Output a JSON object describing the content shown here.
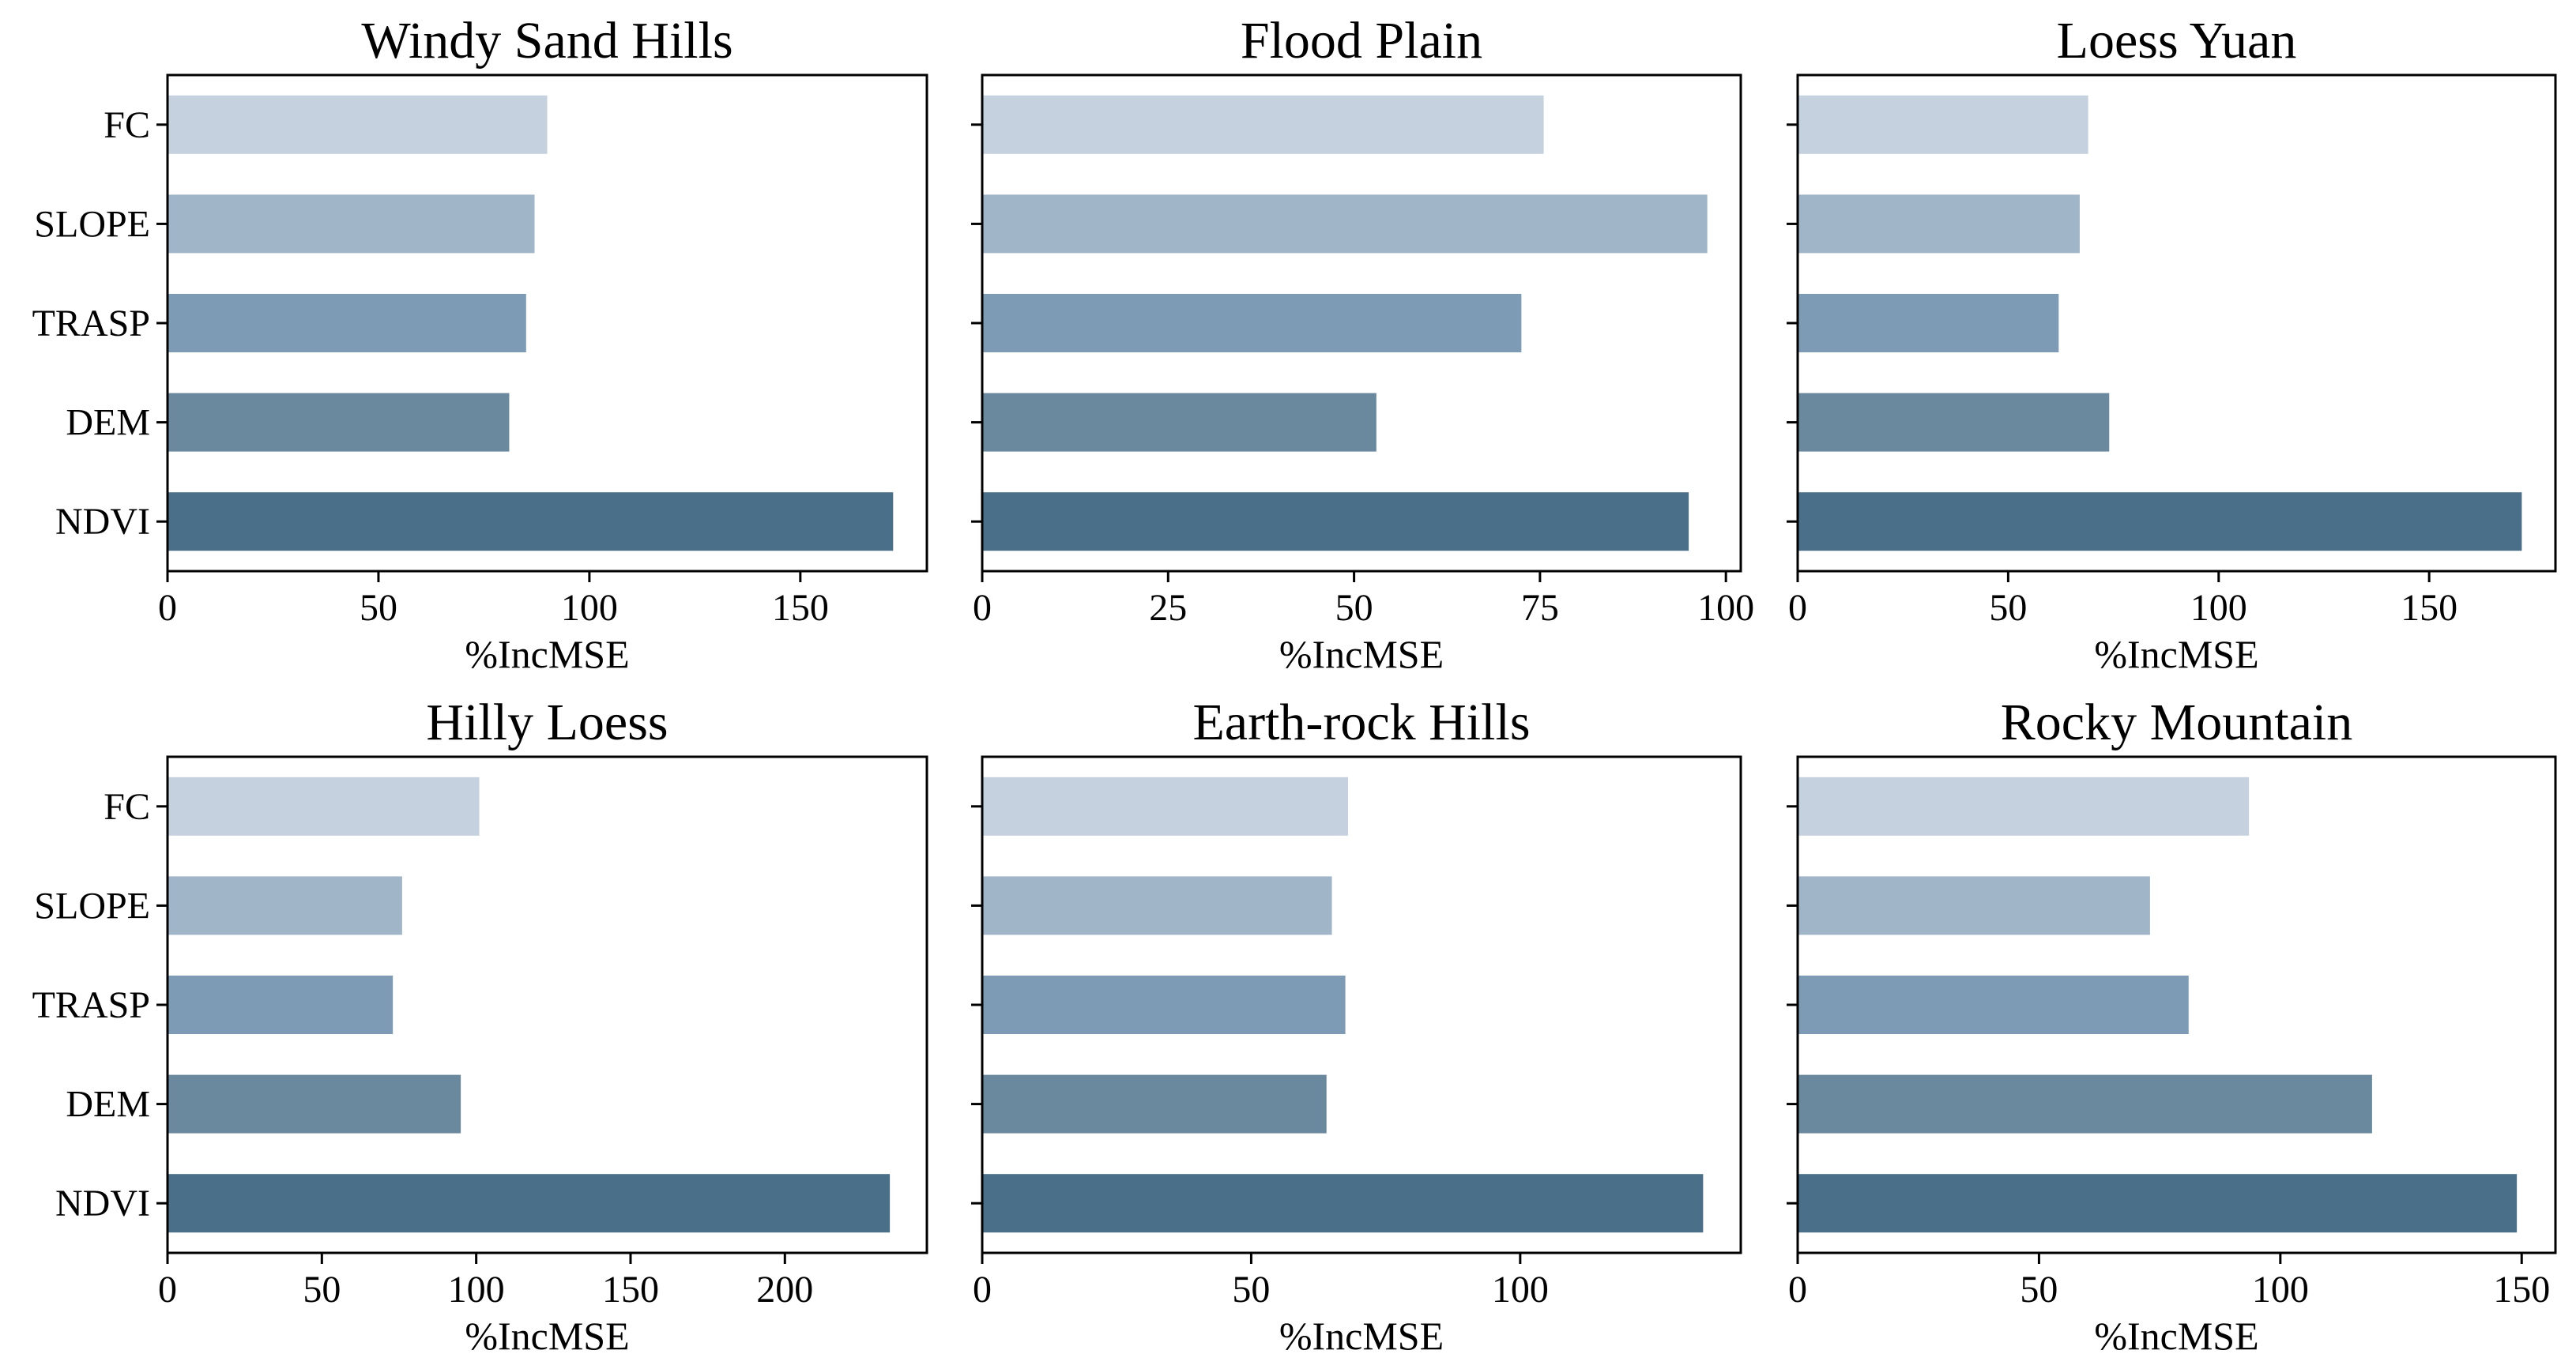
{
  "chart_data": [
    {
      "type": "bar",
      "orientation": "horizontal",
      "title": "Windy Sand Hills",
      "xlabel": "%IncMSE",
      "ylabel": "",
      "categories": [
        "FC",
        "SLOPE",
        "TRASP",
        "DEM",
        "NDVI"
      ],
      "values": [
        90,
        87,
        85,
        81,
        172
      ],
      "xlim": [
        0,
        180
      ],
      "xticks": [
        0,
        50,
        100,
        150
      ],
      "show_category_labels": true
    },
    {
      "type": "bar",
      "orientation": "horizontal",
      "title": "Flood Plain",
      "xlabel": "%IncMSE",
      "ylabel": "",
      "categories": [
        "FC",
        "SLOPE",
        "TRASP",
        "DEM",
        "NDVI"
      ],
      "values": [
        75.5,
        97.5,
        72.5,
        53,
        95
      ],
      "xlim": [
        0,
        102
      ],
      "xticks": [
        0,
        25,
        50,
        75,
        100
      ],
      "show_category_labels": false
    },
    {
      "type": "bar",
      "orientation": "horizontal",
      "title": "Loess Yuan",
      "xlabel": "%IncMSE",
      "ylabel": "",
      "categories": [
        "FC",
        "SLOPE",
        "TRASP",
        "DEM",
        "NDVI"
      ],
      "values": [
        69,
        67,
        62,
        74,
        172
      ],
      "xlim": [
        0,
        180
      ],
      "xticks": [
        0,
        50,
        100,
        150
      ],
      "show_category_labels": false
    },
    {
      "type": "bar",
      "orientation": "horizontal",
      "title": "Hilly Loess",
      "xlabel": "%IncMSE",
      "ylabel": "",
      "categories": [
        "FC",
        "SLOPE",
        "TRASP",
        "DEM",
        "NDVI"
      ],
      "values": [
        101,
        76,
        73,
        95,
        234
      ],
      "xlim": [
        0,
        246
      ],
      "xticks": [
        0,
        50,
        100,
        150,
        200
      ],
      "show_category_labels": true
    },
    {
      "type": "bar",
      "orientation": "horizontal",
      "title": "Earth-rock Hills",
      "xlabel": "%IncMSE",
      "ylabel": "",
      "categories": [
        "FC",
        "SLOPE",
        "TRASP",
        "DEM",
        "NDVI"
      ],
      "values": [
        68,
        65,
        67.5,
        64,
        134
      ],
      "xlim": [
        0,
        141
      ],
      "xticks": [
        0,
        50,
        100
      ],
      "show_category_labels": false
    },
    {
      "type": "bar",
      "orientation": "horizontal",
      "title": "Rocky Mountain",
      "xlabel": "%IncMSE",
      "ylabel": "",
      "categories": [
        "FC",
        "SLOPE",
        "TRASP",
        "DEM",
        "NDVI"
      ],
      "values": [
        93.5,
        73,
        81,
        119,
        149
      ],
      "xlim": [
        0,
        157
      ],
      "xticks": [
        0,
        50,
        100,
        150
      ],
      "show_category_labels": false
    }
  ],
  "colors": {
    "bars": [
      "#c5d1de",
      "#a1b5c9",
      "#7d9bb4",
      "#6a899f",
      "#4a7089"
    ],
    "frame": "#000000",
    "background": "#ffffff"
  }
}
